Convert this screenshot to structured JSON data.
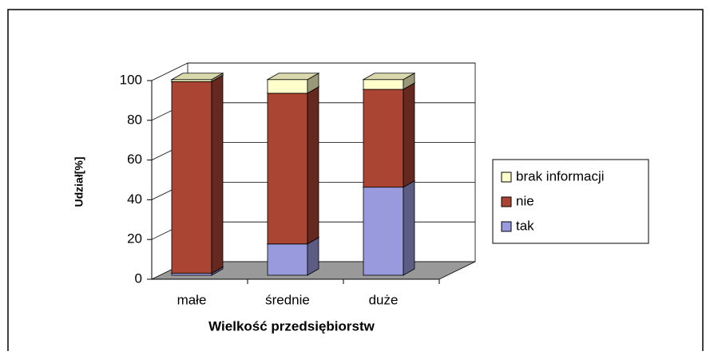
{
  "chart_data": {
    "type": "bar3d_stacked",
    "categories": [
      "małe",
      "średnie",
      "duże"
    ],
    "series": [
      {
        "name": "tak",
        "color": "#9999dd",
        "values": [
          1,
          16,
          45
        ]
      },
      {
        "name": "nie",
        "color": "#aa4433",
        "values": [
          98,
          77,
          50
        ]
      },
      {
        "name": "brak informacji",
        "color": "#ffffcc",
        "values": [
          1,
          7,
          5
        ]
      }
    ],
    "x_label": "Wielkość przedsiębiorstw",
    "y_label": "Udział[%]",
    "ylim": [
      0,
      100
    ],
    "yticks": [
      0,
      20,
      40,
      60,
      80,
      100
    ],
    "grid": true
  }
}
